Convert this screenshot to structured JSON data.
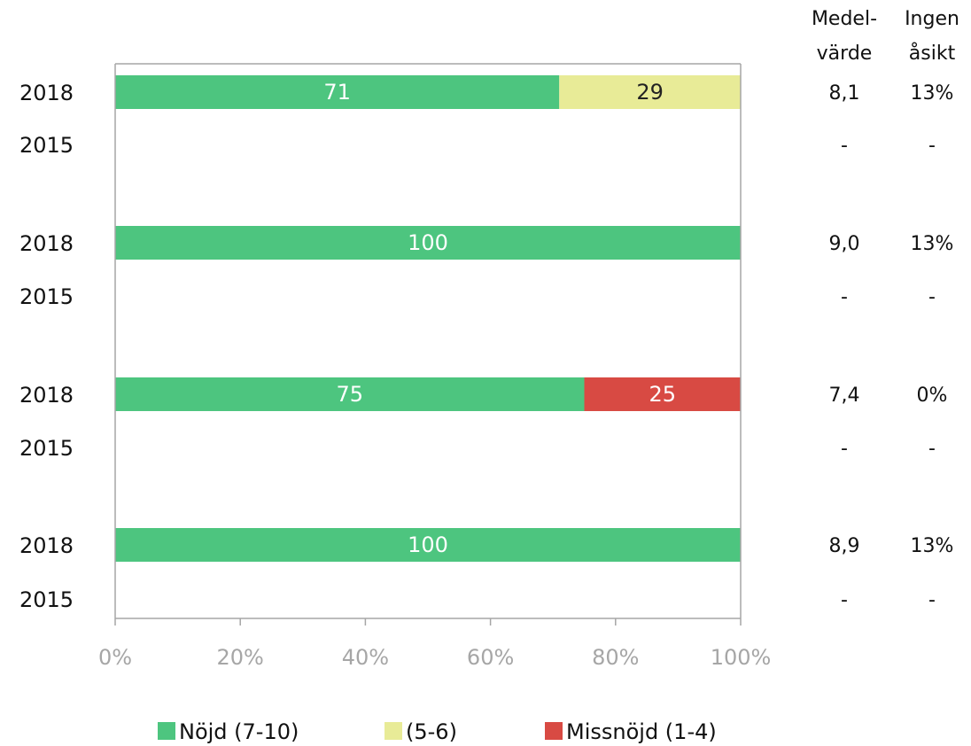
{
  "chart_data": {
    "type": "bar",
    "orientation": "horizontal",
    "stacked": true,
    "categories": [
      "2018",
      "2015",
      "2018",
      "2015",
      "2018",
      "2015",
      "2018",
      "2015"
    ],
    "series": [
      {
        "name": "Nöjd (7-10)",
        "color": "#4dc57f",
        "label_color": "#ffffff",
        "values": [
          71,
          null,
          100,
          null,
          75,
          null,
          100,
          null
        ]
      },
      {
        "name": "(5-6)",
        "color": "#e8eb97",
        "label_color": "#222222",
        "values": [
          29,
          null,
          0,
          null,
          0,
          null,
          0,
          null
        ]
      },
      {
        "name": "Missnöjd (1-4)",
        "color": "#d84a43",
        "label_color": "#ffffff",
        "values": [
          0,
          null,
          0,
          null,
          25,
          null,
          0,
          null
        ]
      }
    ],
    "xlim": [
      0,
      100
    ],
    "x_ticks": [
      "0%",
      "20%",
      "40%",
      "60%",
      "80%",
      "100%"
    ],
    "grid": false,
    "legend_position": "bottom",
    "side_table": {
      "headers": [
        {
          "line1": "Medel-",
          "line2": "värde"
        },
        {
          "line1": "Ingen",
          "line2": "åsikt"
        }
      ],
      "medelvarde": [
        "8,1",
        "-",
        "9,0",
        "-",
        "7,4",
        "-",
        "8,9",
        "-"
      ],
      "ingen_asikt": [
        "13%",
        "-",
        "13%",
        "-",
        "0%",
        "-",
        "13%",
        "-"
      ]
    }
  }
}
